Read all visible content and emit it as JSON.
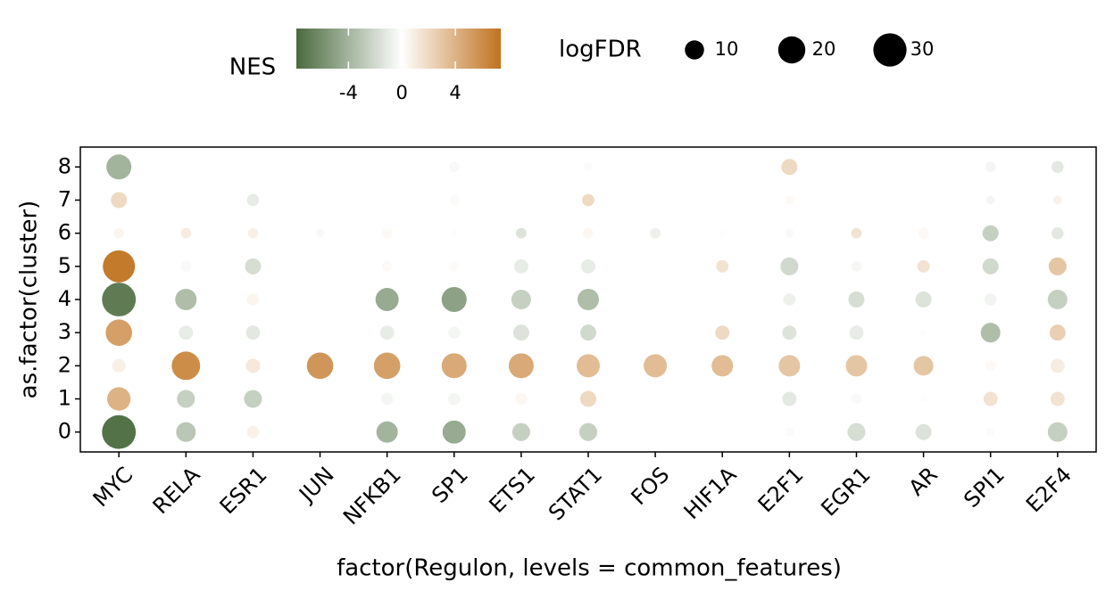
{
  "chart_data": {
    "type": "dotplot",
    "x_label": "factor(Regulon, levels = common_features)",
    "y_label": "as.factor(cluster)",
    "y_categories": [
      "0",
      "1",
      "2",
      "3",
      "4",
      "5",
      "6",
      "7",
      "8"
    ],
    "color_legend": {
      "title": "NES",
      "ticks": [
        -4,
        0,
        4
      ],
      "lim": [
        -7.9,
        7.4
      ],
      "colors": [
        "#4a6a3e",
        "#ffffff",
        "#c0721f"
      ]
    },
    "size_legend": {
      "title": "logFDR",
      "values": [
        10,
        20,
        30
      ]
    },
    "series": [
      {
        "name": "MYC",
        "nes": [
          -7.5,
          4,
          0.8,
          5,
          -7,
          7,
          0.5,
          2,
          -4
        ],
        "logFDR": [
          31,
          15,
          5,
          19,
          31,
          28,
          3,
          7,
          17
        ]
      },
      {
        "name": "RELA",
        "nes": [
          -3,
          -2.5,
          6,
          -1,
          -3.5,
          -0.3,
          1,
          null,
          null
        ],
        "logFDR": [
          10.5,
          8.7,
          22,
          5.5,
          12.5,
          3,
          3,
          null,
          null
        ]
      },
      {
        "name": "ESR1",
        "nes": [
          0.7,
          -2.5,
          1.2,
          -1.2,
          0.5,
          -1.8,
          0.8,
          -1,
          null
        ],
        "logFDR": [
          4.2,
          8.7,
          5.5,
          5.5,
          4,
          7,
          3,
          4,
          null
        ]
      },
      {
        "name": "JUN",
        "nes": [
          null,
          null,
          5.5,
          null,
          null,
          null,
          -0.3,
          null,
          null
        ],
        "logFDR": [
          null,
          null,
          19,
          null,
          null,
          null,
          2.2,
          null,
          null
        ]
      },
      {
        "name": "NFKB1",
        "nes": [
          -4,
          -0.5,
          5,
          -1,
          -4.5,
          0.3,
          0.3,
          null,
          null
        ],
        "logFDR": [
          12.5,
          4,
          19,
          5.5,
          14.6,
          3,
          3,
          null,
          null
        ]
      },
      {
        "name": "SP1",
        "nes": [
          -4.5,
          -0.5,
          4.5,
          -0.5,
          -5,
          0.2,
          0.1,
          0.2,
          -0.3
        ],
        "logFDR": [
          14.6,
          4,
          17,
          4,
          17,
          3,
          1.5,
          3,
          3
        ]
      },
      {
        "name": "ETS1",
        "nes": [
          -2.5,
          0.4,
          4.5,
          -1.5,
          -2.5,
          -1,
          -1.5,
          null,
          null
        ],
        "logFDR": [
          8.7,
          4,
          17,
          7,
          10.5,
          5.5,
          3,
          null,
          null
        ]
      },
      {
        "name": "STAT1",
        "nes": [
          -2.5,
          2,
          3.5,
          -2,
          -3.5,
          -1,
          0.4,
          2,
          0.2
        ],
        "logFDR": [
          8.7,
          7,
          14.6,
          7,
          12.5,
          5.5,
          3,
          4,
          2.2
        ]
      },
      {
        "name": "FOS",
        "nes": [
          null,
          null,
          3.5,
          null,
          null,
          null,
          -0.8,
          null,
          null
        ],
        "logFDR": [
          null,
          null,
          14.6,
          null,
          null,
          null,
          3,
          null,
          null
        ]
      },
      {
        "name": "HIF1A",
        "nes": [
          null,
          null,
          3.5,
          2,
          null,
          1.5,
          0.1,
          null,
          null
        ],
        "logFDR": [
          null,
          null,
          12.5,
          5.5,
          null,
          4.2,
          1.5,
          null,
          null
        ]
      },
      {
        "name": "E2F1",
        "nes": [
          -0.2,
          -1.2,
          3,
          -1.5,
          -0.8,
          -2,
          -0.3,
          0.3,
          2
        ],
        "logFDR": [
          2.2,
          5.5,
          12.5,
          5.5,
          4,
          8.7,
          2.2,
          2.2,
          7
        ]
      },
      {
        "name": "EGR1",
        "nes": [
          -1.8,
          -0.3,
          3,
          -1,
          -1.8,
          -0.4,
          1.5,
          null,
          null
        ],
        "logFDR": [
          8.7,
          3,
          12.5,
          5.5,
          7,
          3,
          3,
          null,
          null
        ]
      },
      {
        "name": "AR",
        "nes": [
          -1.5,
          0.1,
          3,
          0.1,
          -1.5,
          1.5,
          0.3,
          null,
          null
        ],
        "logFDR": [
          7,
          1.5,
          10.5,
          1.5,
          7,
          4.2,
          3,
          null,
          null
        ]
      },
      {
        "name": "SPI1",
        "nes": [
          -0.2,
          1.5,
          0.3,
          -3.5,
          -0.6,
          -2,
          -2.5,
          -0.5,
          -0.5
        ],
        "logFDR": [
          2.2,
          5.5,
          3,
          10.5,
          4,
          7,
          7,
          2.2,
          3
        ]
      },
      {
        "name": "E2F4",
        "nes": [
          -2.5,
          1.5,
          1,
          2.5,
          -2.5,
          3,
          -1.2,
          0.7,
          -1.2
        ],
        "logFDR": [
          10.5,
          5.5,
          5.5,
          7,
          10.5,
          8.7,
          4,
          2.2,
          4
        ]
      }
    ]
  }
}
